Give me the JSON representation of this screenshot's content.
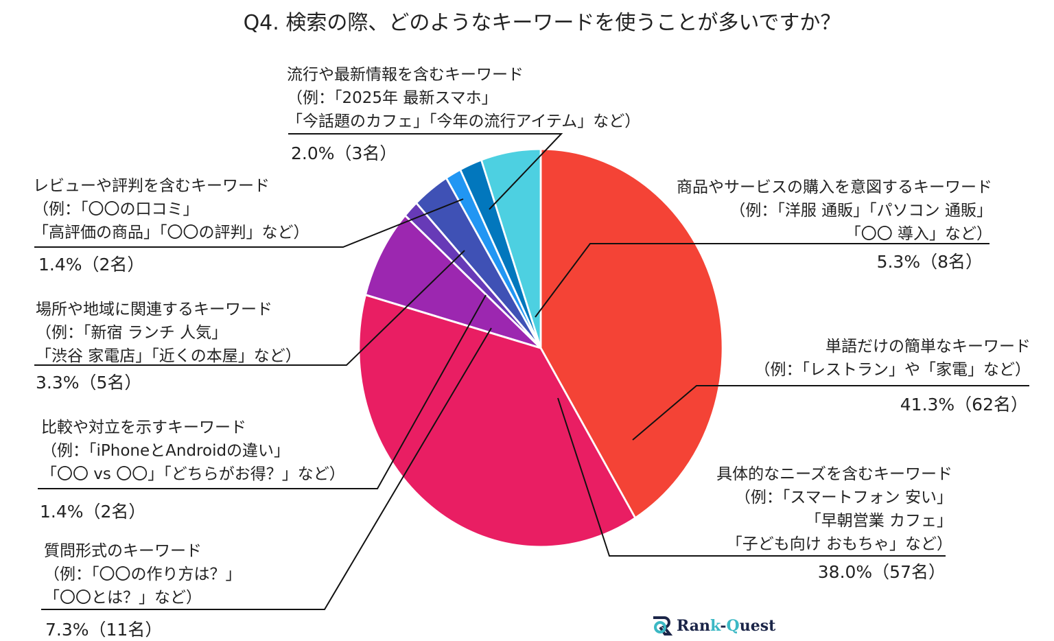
{
  "chart_data": {
    "type": "pie",
    "title": "Q4. 検索の際、どのようなキーワードを使うことが多いですか？",
    "slices": [
      {
        "label": "単語だけの簡単なキーワード",
        "example": [
          "（例：「レストラン」や「家電」など）"
        ],
        "percent": 41.3,
        "count": "41.3%（62名）",
        "color": "#f44336"
      },
      {
        "label": "具体的なニーズを含むキーワード",
        "example": [
          "（例：「スマートフォン 安い」",
          "「早朝営業 カフェ」",
          "「子ども向け おもちゃ」など）"
        ],
        "percent": 38.0,
        "count": "38.0%（57名）",
        "color": "#e91e63"
      },
      {
        "label": "質問形式のキーワード",
        "example": [
          "（例：「〇〇の作り方は？」",
          "「〇〇とは？」など）"
        ],
        "percent": 7.3,
        "count": "7.3%（11名）",
        "color": "#9c27b0"
      },
      {
        "label": "比較や対立を示すキーワード",
        "example": [
          "（例：「iPhoneとAndroidの違い」",
          "「〇〇 vs 〇〇」「どちらがお得？」など）"
        ],
        "percent": 1.4,
        "count": "1.4%（2名）",
        "color": "#673ab7"
      },
      {
        "label": "場所や地域に関連するキーワード",
        "example": [
          "（例：「新宿 ランチ 人気」",
          "「渋谷 家電店」「近くの本屋」など）"
        ],
        "percent": 3.3,
        "count": "3.3%（5名）",
        "color": "#3f51b5"
      },
      {
        "label": "レビューや評判を含むキーワード",
        "example": [
          "（例：「〇〇の口コミ」",
          "「高評価の商品」「〇〇の評判」など）"
        ],
        "percent": 1.4,
        "count": "1.4%（2名）",
        "color": "#2196f3"
      },
      {
        "label": "流行や最新情報を含むキーワード",
        "example": [
          "（例：「2025年 最新スマホ」",
          "「今話題のカフェ」「今年の流行アイテム」など）"
        ],
        "percent": 2.0,
        "count": "2.0%（3名）",
        "color": "#0277bd"
      },
      {
        "label": "商品やサービスの購入を意図するキーワード",
        "example": [
          "（例：「洋服 通販」「パソコン 通販」",
          "「〇〇 導入」など）"
        ],
        "percent": 5.3,
        "count": "5.3%（8名）",
        "color": "#4dd0e1"
      }
    ]
  },
  "logo": {
    "prefix": "Ran",
    "accent": "k",
    "middle": "-",
    "accent2": "Q",
    "suffix": "uest"
  }
}
